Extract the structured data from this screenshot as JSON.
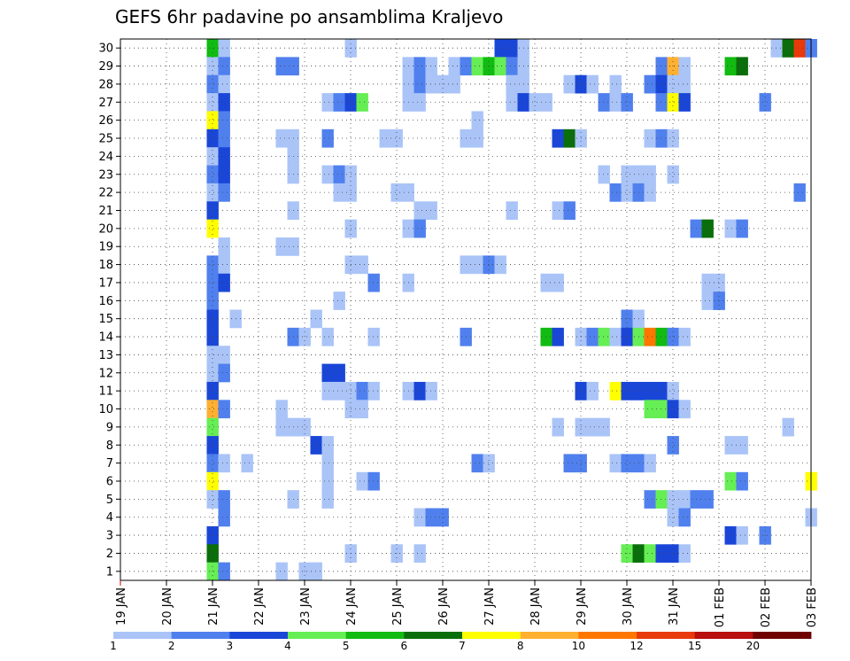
{
  "chart_data": {
    "type": "heatmap",
    "title": "GEFS 6hr padavine po ansamblima Kraljevo",
    "x_tick_labels": [
      "19 JAN",
      "20 JAN",
      "21 JAN",
      "22 JAN",
      "23 JAN",
      "24 JAN",
      "25 JAN",
      "26 JAN",
      "27 JAN",
      "28 JAN",
      "29 JAN",
      "30 JAN",
      "31 JAN",
      "01 FEB",
      "02 FEB",
      "03 FEB"
    ],
    "y_tick_labels": [
      "1",
      "2",
      "3",
      "4",
      "5",
      "6",
      "7",
      "8",
      "9",
      "10",
      "11",
      "12",
      "13",
      "14",
      "15",
      "16",
      "17",
      "18",
      "19",
      "20",
      "21",
      "22",
      "23",
      "24",
      "25",
      "26",
      "27",
      "28",
      "29",
      "30"
    ],
    "x_step_hours": 6,
    "x_range_steps": [
      0,
      60
    ],
    "y_range": [
      0,
      30
    ],
    "grid": true,
    "legend": {
      "placement": "bottom",
      "labels": [
        "1",
        "2",
        "3",
        "4",
        "5",
        "6",
        "7",
        "8",
        "10",
        "12",
        "15",
        "20"
      ],
      "colors": [
        "#aac4f8",
        "#5080ee",
        "#1a46d8",
        "#66ee55",
        "#11bb11",
        "#0a6e0a",
        "#ffff00",
        "#ffb030",
        "#ff7700",
        "#e83a0a",
        "#b80f0f",
        "#700000"
      ]
    },
    "level_colors": [
      "",
      "#aac4f8",
      "#5080ee",
      "#1a46d8",
      "#66ee55",
      "#11bb11",
      "#0a6e0a",
      "#ffff00",
      "#ffb030",
      "#ff7700",
      "#e83a0a",
      "#b80f0f",
      "#700000"
    ],
    "cells": [
      [
        8,
        30,
        5
      ],
      [
        9,
        30,
        1
      ],
      [
        20,
        30,
        1
      ],
      [
        33,
        30,
        3
      ],
      [
        34,
        30,
        3
      ],
      [
        35,
        30,
        1
      ],
      [
        57,
        30,
        1
      ],
      [
        58,
        30,
        6
      ],
      [
        59,
        30,
        10
      ],
      [
        60,
        30,
        2
      ],
      [
        8,
        29,
        1
      ],
      [
        9,
        29,
        2
      ],
      [
        14,
        29,
        2
      ],
      [
        15,
        29,
        2
      ],
      [
        25,
        29,
        1
      ],
      [
        26,
        29,
        2
      ],
      [
        27,
        29,
        1
      ],
      [
        29,
        29,
        1
      ],
      [
        30,
        29,
        2
      ],
      [
        31,
        29,
        4
      ],
      [
        32,
        29,
        5
      ],
      [
        33,
        29,
        4
      ],
      [
        34,
        29,
        2
      ],
      [
        35,
        29,
        1
      ],
      [
        47,
        29,
        2
      ],
      [
        48,
        29,
        8
      ],
      [
        49,
        29,
        1
      ],
      [
        53,
        29,
        5
      ],
      [
        54,
        29,
        6
      ],
      [
        8,
        28,
        2
      ],
      [
        9,
        28,
        1
      ],
      [
        25,
        28,
        1
      ],
      [
        26,
        28,
        2
      ],
      [
        27,
        28,
        1
      ],
      [
        28,
        28,
        1
      ],
      [
        29,
        28,
        1
      ],
      [
        34,
        28,
        1
      ],
      [
        35,
        28,
        1
      ],
      [
        39,
        28,
        1
      ],
      [
        40,
        28,
        3
      ],
      [
        41,
        28,
        1
      ],
      [
        43,
        28,
        1
      ],
      [
        46,
        28,
        2
      ],
      [
        47,
        28,
        3
      ],
      [
        48,
        28,
        1
      ],
      [
        49,
        28,
        1
      ],
      [
        8,
        27,
        1
      ],
      [
        9,
        27,
        3
      ],
      [
        18,
        27,
        1
      ],
      [
        19,
        27,
        2
      ],
      [
        20,
        27,
        3
      ],
      [
        21,
        27,
        4
      ],
      [
        25,
        27,
        1
      ],
      [
        26,
        27,
        1
      ],
      [
        34,
        27,
        1
      ],
      [
        35,
        27,
        3
      ],
      [
        36,
        27,
        1
      ],
      [
        37,
        27,
        1
      ],
      [
        42,
        27,
        2
      ],
      [
        43,
        27,
        1
      ],
      [
        44,
        27,
        2
      ],
      [
        47,
        27,
        2
      ],
      [
        48,
        27,
        7
      ],
      [
        49,
        27,
        3
      ],
      [
        56,
        27,
        2
      ],
      [
        8,
        26,
        7
      ],
      [
        9,
        26,
        2
      ],
      [
        31,
        26,
        1
      ],
      [
        8,
        25,
        3
      ],
      [
        9,
        25,
        2
      ],
      [
        14,
        25,
        1
      ],
      [
        15,
        25,
        1
      ],
      [
        18,
        25,
        2
      ],
      [
        23,
        25,
        1
      ],
      [
        24,
        25,
        1
      ],
      [
        30,
        25,
        1
      ],
      [
        31,
        25,
        1
      ],
      [
        38,
        25,
        3
      ],
      [
        39,
        25,
        6
      ],
      [
        40,
        25,
        1
      ],
      [
        46,
        25,
        1
      ],
      [
        47,
        25,
        2
      ],
      [
        48,
        25,
        1
      ],
      [
        8,
        24,
        1
      ],
      [
        9,
        24,
        3
      ],
      [
        15,
        24,
        1
      ],
      [
        8,
        23,
        2
      ],
      [
        9,
        23,
        3
      ],
      [
        15,
        23,
        1
      ],
      [
        18,
        23,
        1
      ],
      [
        19,
        23,
        2
      ],
      [
        20,
        23,
        1
      ],
      [
        42,
        23,
        1
      ],
      [
        44,
        23,
        1
      ],
      [
        45,
        23,
        1
      ],
      [
        46,
        23,
        1
      ],
      [
        48,
        23,
        1
      ],
      [
        8,
        22,
        1
      ],
      [
        9,
        22,
        2
      ],
      [
        19,
        22,
        1
      ],
      [
        20,
        22,
        1
      ],
      [
        24,
        22,
        1
      ],
      [
        25,
        22,
        1
      ],
      [
        43,
        22,
        2
      ],
      [
        44,
        22,
        1
      ],
      [
        45,
        22,
        2
      ],
      [
        46,
        22,
        1
      ],
      [
        59,
        22,
        2
      ],
      [
        8,
        21,
        3
      ],
      [
        15,
        21,
        1
      ],
      [
        26,
        21,
        1
      ],
      [
        27,
        21,
        1
      ],
      [
        34,
        21,
        1
      ],
      [
        38,
        21,
        1
      ],
      [
        39,
        21,
        2
      ],
      [
        8,
        20,
        7
      ],
      [
        20,
        20,
        1
      ],
      [
        25,
        20,
        1
      ],
      [
        26,
        20,
        2
      ],
      [
        50,
        20,
        2
      ],
      [
        51,
        20,
        6
      ],
      [
        53,
        20,
        1
      ],
      [
        54,
        20,
        2
      ],
      [
        9,
        19,
        1
      ],
      [
        14,
        19,
        1
      ],
      [
        15,
        19,
        1
      ],
      [
        8,
        18,
        2
      ],
      [
        9,
        18,
        1
      ],
      [
        20,
        18,
        1
      ],
      [
        21,
        18,
        1
      ],
      [
        30,
        18,
        1
      ],
      [
        31,
        18,
        1
      ],
      [
        32,
        18,
        2
      ],
      [
        33,
        18,
        1
      ],
      [
        8,
        17,
        2
      ],
      [
        9,
        17,
        3
      ],
      [
        22,
        17,
        2
      ],
      [
        25,
        17,
        1
      ],
      [
        37,
        17,
        1
      ],
      [
        38,
        17,
        1
      ],
      [
        51,
        17,
        1
      ],
      [
        52,
        17,
        1
      ],
      [
        8,
        16,
        2
      ],
      [
        19,
        16,
        1
      ],
      [
        51,
        16,
        1
      ],
      [
        52,
        16,
        2
      ],
      [
        8,
        15,
        3
      ],
      [
        10,
        15,
        1
      ],
      [
        17,
        15,
        1
      ],
      [
        44,
        15,
        2
      ],
      [
        45,
        15,
        1
      ],
      [
        8,
        14,
        3
      ],
      [
        15,
        14,
        2
      ],
      [
        16,
        14,
        1
      ],
      [
        18,
        14,
        1
      ],
      [
        22,
        14,
        1
      ],
      [
        30,
        14,
        2
      ],
      [
        37,
        14,
        5
      ],
      [
        38,
        14,
        3
      ],
      [
        40,
        14,
        1
      ],
      [
        41,
        14,
        2
      ],
      [
        42,
        14,
        4
      ],
      [
        43,
        14,
        1
      ],
      [
        44,
        14,
        3
      ],
      [
        45,
        14,
        4
      ],
      [
        46,
        14,
        9
      ],
      [
        47,
        14,
        5
      ],
      [
        48,
        14,
        2
      ],
      [
        49,
        14,
        1
      ],
      [
        8,
        13,
        1
      ],
      [
        9,
        13,
        1
      ],
      [
        8,
        12,
        1
      ],
      [
        9,
        12,
        2
      ],
      [
        18,
        12,
        3
      ],
      [
        19,
        12,
        3
      ],
      [
        8,
        11,
        3
      ],
      [
        18,
        11,
        1
      ],
      [
        19,
        11,
        1
      ],
      [
        20,
        11,
        1
      ],
      [
        21,
        11,
        2
      ],
      [
        22,
        11,
        1
      ],
      [
        25,
        11,
        1
      ],
      [
        26,
        11,
        3
      ],
      [
        27,
        11,
        1
      ],
      [
        40,
        11,
        3
      ],
      [
        41,
        11,
        1
      ],
      [
        43,
        11,
        7
      ],
      [
        44,
        11,
        3
      ],
      [
        45,
        11,
        3
      ],
      [
        46,
        11,
        3
      ],
      [
        47,
        11,
        3
      ],
      [
        48,
        11,
        1
      ],
      [
        8,
        10,
        8
      ],
      [
        9,
        10,
        2
      ],
      [
        14,
        10,
        1
      ],
      [
        20,
        10,
        1
      ],
      [
        21,
        10,
        1
      ],
      [
        46,
        10,
        4
      ],
      [
        47,
        10,
        4
      ],
      [
        48,
        10,
        3
      ],
      [
        49,
        10,
        1
      ],
      [
        8,
        9,
        4
      ],
      [
        14,
        9,
        1
      ],
      [
        15,
        9,
        1
      ],
      [
        16,
        9,
        1
      ],
      [
        38,
        9,
        1
      ],
      [
        40,
        9,
        1
      ],
      [
        41,
        9,
        1
      ],
      [
        42,
        9,
        1
      ],
      [
        58,
        9,
        1
      ],
      [
        8,
        8,
        3
      ],
      [
        17,
        8,
        3
      ],
      [
        18,
        8,
        1
      ],
      [
        48,
        8,
        2
      ],
      [
        53,
        8,
        1
      ],
      [
        54,
        8,
        1
      ],
      [
        8,
        7,
        2
      ],
      [
        9,
        7,
        1
      ],
      [
        11,
        7,
        1
      ],
      [
        18,
        7,
        1
      ],
      [
        31,
        7,
        2
      ],
      [
        32,
        7,
        1
      ],
      [
        39,
        7,
        2
      ],
      [
        40,
        7,
        2
      ],
      [
        43,
        7,
        1
      ],
      [
        44,
        7,
        2
      ],
      [
        45,
        7,
        2
      ],
      [
        46,
        7,
        1
      ],
      [
        8,
        6,
        7
      ],
      [
        18,
        6,
        1
      ],
      [
        21,
        6,
        1
      ],
      [
        22,
        6,
        2
      ],
      [
        53,
        6,
        4
      ],
      [
        54,
        6,
        2
      ],
      [
        60,
        6,
        7
      ],
      [
        8,
        5,
        1
      ],
      [
        9,
        5,
        2
      ],
      [
        15,
        5,
        1
      ],
      [
        18,
        5,
        1
      ],
      [
        46,
        5,
        2
      ],
      [
        47,
        5,
        4
      ],
      [
        48,
        5,
        1
      ],
      [
        49,
        5,
        1
      ],
      [
        50,
        5,
        2
      ],
      [
        51,
        5,
        2
      ],
      [
        9,
        4,
        2
      ],
      [
        26,
        4,
        1
      ],
      [
        27,
        4,
        2
      ],
      [
        28,
        4,
        2
      ],
      [
        48,
        4,
        1
      ],
      [
        49,
        4,
        2
      ],
      [
        60,
        4,
        1
      ],
      [
        8,
        3,
        3
      ],
      [
        53,
        3,
        3
      ],
      [
        54,
        3,
        1
      ],
      [
        56,
        3,
        2
      ],
      [
        8,
        2,
        6
      ],
      [
        20,
        2,
        1
      ],
      [
        24,
        2,
        1
      ],
      [
        26,
        2,
        1
      ],
      [
        44,
        2,
        4
      ],
      [
        45,
        2,
        6
      ],
      [
        46,
        2,
        4
      ],
      [
        47,
        2,
        3
      ],
      [
        48,
        2,
        3
      ],
      [
        49,
        2,
        1
      ],
      [
        8,
        1,
        4
      ],
      [
        9,
        1,
        2
      ],
      [
        14,
        1,
        1
      ],
      [
        16,
        1,
        1
      ],
      [
        17,
        1,
        1
      ]
    ]
  }
}
